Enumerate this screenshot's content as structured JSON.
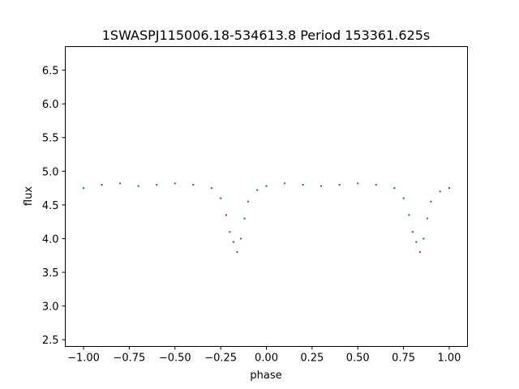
{
  "chart_data": {
    "type": "scatter",
    "title": "1SWASPJ115006.18-534613.8 Period 153361.625s",
    "xlabel": "phase",
    "ylabel": "flux",
    "xlim": [
      -1.1,
      1.1
    ],
    "ylim": [
      2.4,
      6.85
    ],
    "xticks": [
      -1.0,
      -0.75,
      -0.5,
      -0.25,
      0.0,
      0.25,
      0.5,
      0.75,
      1.0
    ],
    "xtick_labels": [
      "−1.00",
      "−0.75",
      "−0.50",
      "−0.25",
      "0.00",
      "0.25",
      "0.50",
      "0.75",
      "1.00"
    ],
    "yticks": [
      2.5,
      3.0,
      3.5,
      4.0,
      4.5,
      5.0,
      5.5,
      6.0,
      6.5
    ],
    "ytick_labels": [
      "2.5",
      "3.0",
      "3.5",
      "4.0",
      "4.5",
      "5.0",
      "5.5",
      "6.0",
      "6.5"
    ],
    "grid": false,
    "marker_color": "#1f77b4",
    "series": [
      {
        "x": [
          -1.0,
          -0.9,
          -0.8,
          -0.7,
          -0.6,
          -0.5,
          -0.4,
          -0.3,
          -0.25,
          -0.22,
          -0.2,
          -0.18,
          -0.16,
          -0.14,
          -0.12,
          -0.1,
          -0.05,
          0.0,
          0.1,
          0.2,
          0.3,
          0.4,
          0.5,
          0.6,
          0.7,
          0.75,
          0.78,
          0.8,
          0.82,
          0.84,
          0.86,
          0.88,
          0.9,
          0.95,
          1.0
        ],
        "y": [
          4.75,
          4.8,
          4.82,
          4.78,
          4.8,
          4.82,
          4.8,
          4.75,
          4.6,
          4.35,
          4.1,
          3.95,
          3.8,
          4.0,
          4.3,
          4.55,
          4.72,
          4.78,
          4.82,
          4.8,
          4.78,
          4.8,
          4.82,
          4.8,
          4.75,
          4.6,
          4.35,
          4.1,
          3.95,
          3.8,
          4.0,
          4.3,
          4.55,
          4.7,
          4.75
        ]
      }
    ]
  }
}
